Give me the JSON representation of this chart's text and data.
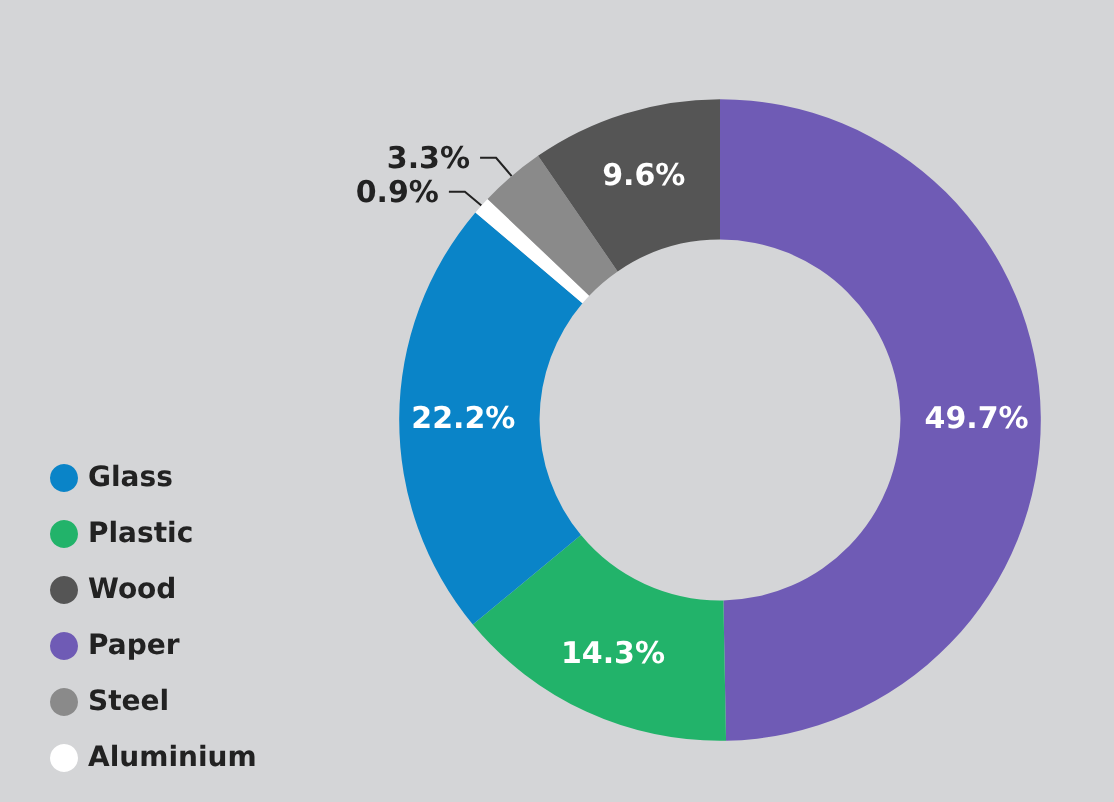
{
  "chart_data": {
    "type": "donut",
    "categories": [
      "Paper",
      "Plastic",
      "Glass",
      "Aluminium",
      "Steel",
      "Wood"
    ],
    "values": [
      49.7,
      14.3,
      22.2,
      0.9,
      3.3,
      9.6
    ],
    "colors": [
      "#6f5bb5",
      "#22b36a",
      "#0a84c8",
      "#ffffff",
      "#8a8a8a",
      "#555555"
    ],
    "value_labels": [
      "49.7%",
      "14.3%",
      "22.2%",
      "0.9%",
      "3.3%",
      "9.6%"
    ],
    "legend": "bottom left"
  }
}
